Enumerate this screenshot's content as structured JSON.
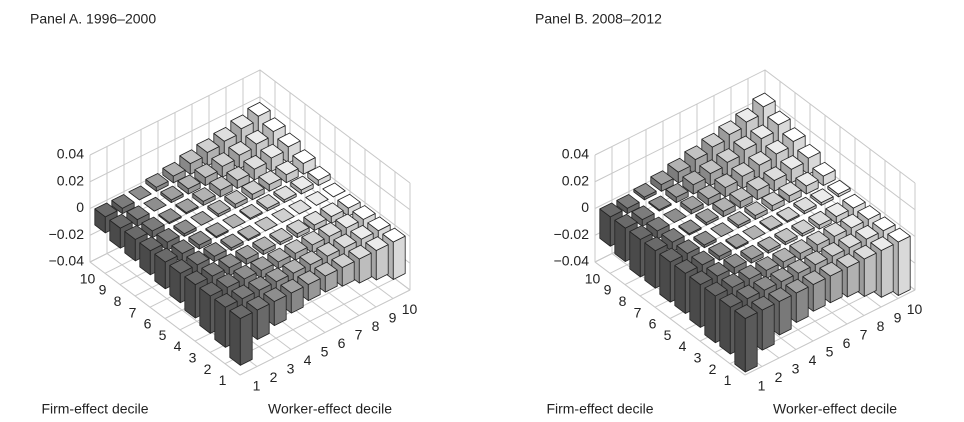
{
  "chart_data": [
    {
      "type": "bar3d",
      "title": "Panel A. 1996–2000",
      "xlabel": "Worker-effect decile",
      "ylabel": "Firm-effect decile",
      "x": [
        1,
        2,
        3,
        4,
        5,
        6,
        7,
        8,
        9,
        10
      ],
      "y": [
        1,
        2,
        3,
        4,
        5,
        6,
        7,
        8,
        9,
        10
      ],
      "colors": [
        "#6a6a6a",
        "#7c7c7c",
        "#8e8e8e",
        "#a0a0a0",
        "#b2b2b2",
        "#c2c2c2",
        "#d0d0d0",
        "#dedede",
        "#ececec",
        "#ffffff"
      ],
      "zlim": [
        -0.04,
        0.04
      ],
      "zticks": [
        {
          "value": -0.04,
          "label": "−0.04"
        },
        {
          "value": -0.02,
          "label": "−0.02"
        },
        0,
        0.02,
        0.04
      ],
      "z": [
        [
          -0.035,
          -0.022,
          -0.018,
          -0.015,
          -0.012,
          -0.012,
          -0.014,
          -0.018,
          -0.022,
          -0.028
        ],
        [
          -0.03,
          -0.015,
          -0.012,
          -0.01,
          -0.008,
          -0.008,
          -0.01,
          -0.012,
          -0.015,
          -0.02
        ],
        [
          -0.028,
          -0.012,
          -0.008,
          -0.006,
          -0.005,
          -0.005,
          -0.006,
          -0.008,
          -0.01,
          -0.012
        ],
        [
          -0.025,
          -0.01,
          -0.006,
          -0.004,
          -0.003,
          -0.002,
          -0.003,
          -0.004,
          -0.005,
          -0.006
        ],
        [
          -0.022,
          -0.008,
          -0.004,
          -0.002,
          -0.001,
          0,
          0,
          0,
          0,
          0
        ],
        [
          -0.02,
          -0.007,
          -0.003,
          -0.001,
          0,
          0.001,
          0.002,
          0.002,
          0.003,
          0.004
        ],
        [
          -0.018,
          -0.006,
          -0.002,
          0,
          0.002,
          0.003,
          0.004,
          0.005,
          0.006,
          0.008
        ],
        [
          -0.016,
          -0.005,
          -0.001,
          0.001,
          0.003,
          0.005,
          0.006,
          0.008,
          0.01,
          0.012
        ],
        [
          -0.015,
          -0.005,
          0,
          0.002,
          0.004,
          0.006,
          0.008,
          0.01,
          0.012,
          0.015
        ],
        [
          -0.012,
          -0.004,
          0,
          0.003,
          0.005,
          0.008,
          0.01,
          0.012,
          0.015,
          0.018
        ]
      ]
    },
    {
      "type": "bar3d",
      "title": "Panel B. 2008–2012",
      "xlabel": "Worker-effect decile",
      "ylabel": "Firm-effect decile",
      "x": [
        1,
        2,
        3,
        4,
        5,
        6,
        7,
        8,
        9,
        10
      ],
      "y": [
        1,
        2,
        3,
        4,
        5,
        6,
        7,
        8,
        9,
        10
      ],
      "colors": [
        "#6a6a6a",
        "#7c7c7c",
        "#8e8e8e",
        "#a0a0a0",
        "#b2b2b2",
        "#c2c2c2",
        "#d0d0d0",
        "#dedede",
        "#ececec",
        "#ffffff"
      ],
      "zlim": [
        -0.04,
        0.04
      ],
      "zticks": [
        {
          "value": -0.04,
          "label": "−0.04"
        },
        {
          "value": -0.02,
          "label": "−0.02"
        },
        0,
        0.02,
        0.04
      ],
      "z": [
        [
          -0.04,
          -0.03,
          -0.025,
          -0.022,
          -0.02,
          -0.02,
          -0.022,
          -0.028,
          -0.035,
          -0.04
        ],
        [
          -0.035,
          -0.018,
          -0.014,
          -0.012,
          -0.01,
          -0.01,
          -0.012,
          -0.016,
          -0.022,
          -0.03
        ],
        [
          -0.035,
          -0.012,
          -0.008,
          -0.006,
          -0.005,
          -0.005,
          -0.006,
          -0.008,
          -0.012,
          -0.02
        ],
        [
          -0.032,
          -0.01,
          -0.005,
          -0.003,
          -0.002,
          -0.002,
          -0.002,
          -0.003,
          -0.005,
          -0.008
        ],
        [
          -0.03,
          -0.008,
          -0.003,
          -0.001,
          0,
          0.001,
          0.001,
          0.002,
          0.002,
          0.002
        ],
        [
          -0.03,
          -0.008,
          -0.002,
          0,
          0.002,
          0.003,
          0.004,
          0.005,
          0.006,
          0.007
        ],
        [
          -0.028,
          -0.007,
          -0.001,
          0.002,
          0.004,
          0.005,
          0.007,
          0.008,
          0.01,
          0.012
        ],
        [
          -0.028,
          -0.006,
          0,
          0.003,
          0.005,
          0.007,
          0.009,
          0.011,
          0.013,
          0.016
        ],
        [
          -0.025,
          -0.005,
          0.001,
          0.004,
          0.007,
          0.009,
          0.011,
          0.014,
          0.016,
          0.02
        ],
        [
          -0.022,
          -0.004,
          0.002,
          0.005,
          0.008,
          0.011,
          0.014,
          0.017,
          0.02,
          0.025
        ]
      ]
    }
  ]
}
